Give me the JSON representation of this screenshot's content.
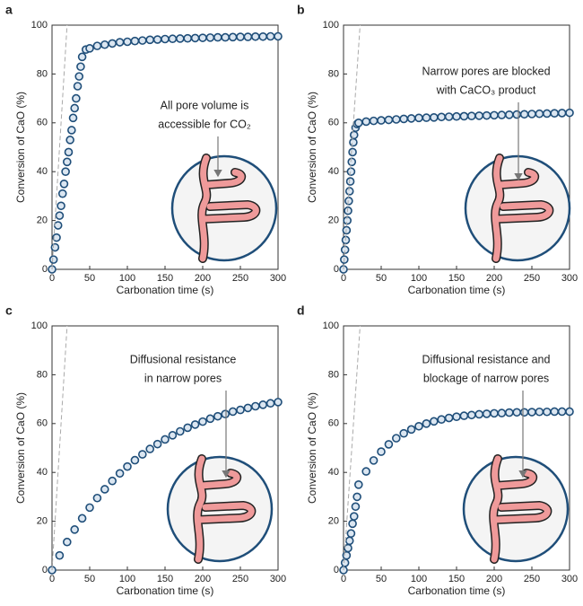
{
  "chart_data": [
    {
      "type": "scatter",
      "title": "a",
      "xlabel": "Carbonation time (s)",
      "ylabel": "Conversion of CaO (%)",
      "xlim": [
        0,
        300
      ],
      "ylim": [
        0,
        100
      ],
      "xticks": [
        0,
        50,
        100,
        150,
        200,
        250,
        300
      ],
      "yticks": [
        0,
        20,
        40,
        60,
        80,
        100
      ],
      "annotation": [
        "All pore volume is",
        "accessible for CO₂"
      ],
      "series": [
        {
          "color": "#1f4e79",
          "marker": "circle",
          "x": [
            0,
            2,
            4,
            6,
            8,
            10,
            12,
            14,
            16,
            18,
            20,
            22,
            24,
            26,
            28,
            30,
            32,
            34,
            36,
            38,
            40,
            45,
            50,
            60,
            70,
            80,
            90,
            100,
            110,
            120,
            130,
            140,
            150,
            160,
            170,
            180,
            190,
            200,
            210,
            220,
            230,
            240,
            250,
            260,
            270,
            280,
            290,
            300
          ],
          "values": [
            0,
            4,
            9,
            13,
            18,
            22,
            26,
            31,
            35,
            40,
            44,
            48,
            53,
            57,
            62,
            66,
            70,
            75,
            79,
            83,
            87,
            90,
            90.5,
            91.5,
            92,
            92.5,
            93,
            93.2,
            93.5,
            93.7,
            94,
            94.1,
            94.3,
            94.4,
            94.5,
            94.6,
            94.7,
            94.8,
            94.9,
            95,
            95,
            95.1,
            95.2,
            95.2,
            95.3,
            95.3,
            95.4,
            95.4
          ]
        },
        {
          "color": "#aaaaaa",
          "style": "dashed",
          "x": [
            0,
            20
          ],
          "values": [
            0,
            100
          ]
        }
      ]
    },
    {
      "type": "scatter",
      "title": "b",
      "xlabel": "Carbonation time (s)",
      "ylabel": "Conversion of CaO (%)",
      "xlim": [
        0,
        300
      ],
      "ylim": [
        0,
        100
      ],
      "xticks": [
        0,
        50,
        100,
        150,
        200,
        250,
        300
      ],
      "yticks": [
        0,
        20,
        40,
        60,
        80,
        100
      ],
      "annotation": [
        "Narrow pores are blocked",
        "with CaCO₃ product"
      ],
      "series": [
        {
          "color": "#1f4e79",
          "marker": "circle",
          "x": [
            0,
            1,
            2,
            3,
            4,
            5,
            6,
            7,
            8,
            9,
            10,
            11,
            12,
            13,
            14,
            16,
            18,
            20,
            30,
            40,
            50,
            60,
            70,
            80,
            90,
            100,
            110,
            120,
            130,
            140,
            150,
            160,
            170,
            180,
            190,
            200,
            210,
            220,
            230,
            240,
            250,
            260,
            270,
            280,
            290,
            300
          ],
          "values": [
            0,
            4,
            8,
            12,
            16,
            20,
            24,
            28,
            32,
            36,
            40,
            44,
            48,
            52,
            55,
            58,
            59.5,
            60,
            60.5,
            60.8,
            61,
            61.2,
            61.4,
            61.6,
            61.8,
            62,
            62.1,
            62.2,
            62.4,
            62.5,
            62.6,
            62.7,
            62.8,
            62.9,
            63,
            63.1,
            63.2,
            63.3,
            63.4,
            63.5,
            63.6,
            63.7,
            63.8,
            63.9,
            64,
            64.1
          ]
        },
        {
          "color": "#aaaaaa",
          "style": "dashed",
          "x": [
            0,
            22
          ],
          "values": [
            0,
            100
          ]
        }
      ]
    },
    {
      "type": "scatter",
      "title": "c",
      "xlabel": "Carbonation time (s)",
      "ylabel": "Conversion of CaO (%)",
      "xlim": [
        0,
        300
      ],
      "ylim": [
        0,
        100
      ],
      "xticks": [
        0,
        50,
        100,
        150,
        200,
        250,
        300
      ],
      "yticks": [
        0,
        20,
        40,
        60,
        80,
        100
      ],
      "annotation": [
        "Diffusional resistance",
        "in narrow pores"
      ],
      "series": [
        {
          "color": "#1f4e79",
          "marker": "circle",
          "x": [
            0,
            10,
            20,
            30,
            40,
            50,
            60,
            70,
            80,
            90,
            100,
            110,
            120,
            130,
            140,
            150,
            160,
            170,
            180,
            190,
            200,
            210,
            220,
            230,
            240,
            250,
            260,
            270,
            280,
            290,
            300
          ],
          "values": [
            0,
            6,
            11.5,
            16.6,
            21.2,
            25.6,
            29.5,
            33.1,
            36.5,
            39.6,
            42.4,
            45,
            47.4,
            49.6,
            51.6,
            53.5,
            55.2,
            56.8,
            58.3,
            59.6,
            60.8,
            62,
            63,
            63.9,
            64.9,
            65.6,
            66.4,
            67.1,
            67.7,
            68.3,
            68.8
          ]
        },
        {
          "color": "#aaaaaa",
          "style": "dashed",
          "x": [
            0,
            20
          ],
          "values": [
            0,
            100
          ]
        }
      ]
    },
    {
      "type": "scatter",
      "title": "d",
      "xlabel": "Carbonation time (s)",
      "ylabel": "Conversion of CaO (%)",
      "xlim": [
        0,
        300
      ],
      "ylim": [
        0,
        100
      ],
      "xticks": [
        0,
        50,
        100,
        150,
        200,
        250,
        300
      ],
      "yticks": [
        0,
        20,
        40,
        60,
        80,
        100
      ],
      "annotation": [
        "Diffusional resistance and",
        "blockage of narrow pores"
      ],
      "series": [
        {
          "color": "#1f4e79",
          "marker": "circle",
          "x": [
            0,
            2,
            4,
            6,
            8,
            10,
            12,
            14,
            16,
            18,
            20,
            30,
            40,
            50,
            60,
            70,
            80,
            90,
            100,
            110,
            120,
            130,
            140,
            150,
            160,
            170,
            180,
            190,
            200,
            210,
            220,
            230,
            240,
            250,
            260,
            270,
            280,
            290,
            300
          ],
          "values": [
            0,
            3,
            6,
            9,
            12,
            15,
            19,
            22,
            26,
            30,
            35,
            40.4,
            44.9,
            48.5,
            51.5,
            54,
            56,
            57.6,
            58.9,
            60,
            60.9,
            61.7,
            62.3,
            62.8,
            63.2,
            63.5,
            63.8,
            64,
            64.2,
            64.3,
            64.5,
            64.6,
            64.6,
            64.7,
            64.8,
            64.8,
            64.9,
            64.9,
            64.9
          ]
        },
        {
          "color": "#aaaaaa",
          "style": "dashed",
          "x": [
            0,
            22
          ],
          "values": [
            0,
            100
          ]
        }
      ]
    }
  ]
}
